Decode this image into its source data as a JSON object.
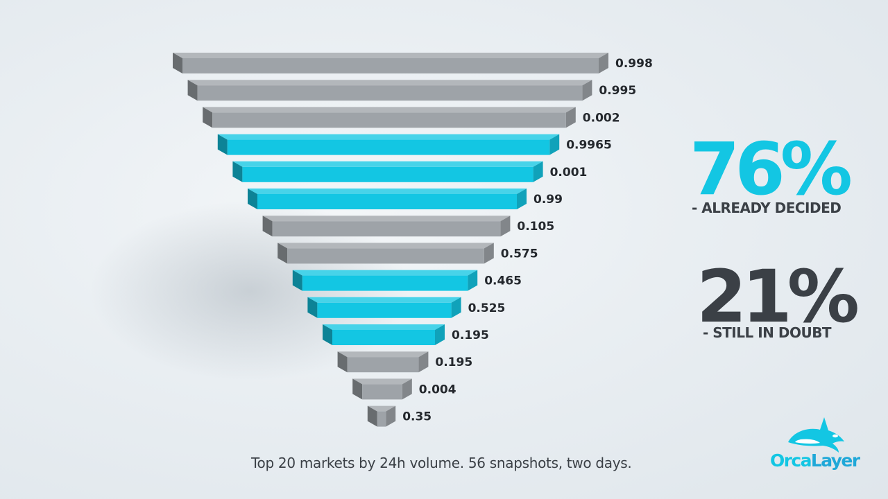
{
  "chart_data": {
    "type": "bar",
    "orientation": "horizontal-stacked-funnel",
    "values": [
      0.998,
      0.995,
      0.002,
      0.9965,
      0.001,
      0.99,
      0.105,
      0.575,
      0.465,
      0.525,
      0.195,
      0.195,
      0.004,
      0.35
    ],
    "labels": [
      "0.998",
      "0.995",
      "0.002",
      "0.9965",
      "0.001",
      "0.99",
      "0.105",
      "0.575",
      "0.465",
      "0.525",
      "0.195",
      "0.195",
      "0.004",
      "0.35"
    ],
    "highlighted": [
      false,
      false,
      false,
      true,
      true,
      true,
      false,
      false,
      true,
      true,
      true,
      false,
      false,
      false
    ]
  },
  "colors": {
    "accent": "#13c6e3",
    "neutral": "#9ea3a8",
    "text_dark": "#3b4046",
    "label": "#24282d"
  },
  "stats": {
    "decided_pct": "76%",
    "decided_caption": "- ALREADY DECIDED",
    "doubt_pct": "21%",
    "doubt_caption": "- STILL IN DOUBT"
  },
  "caption": "Top 20 markets by 24h volume. 56 snapshots, two days.",
  "logo": {
    "text": "OrcaLayer",
    "icon": "orca-icon"
  }
}
